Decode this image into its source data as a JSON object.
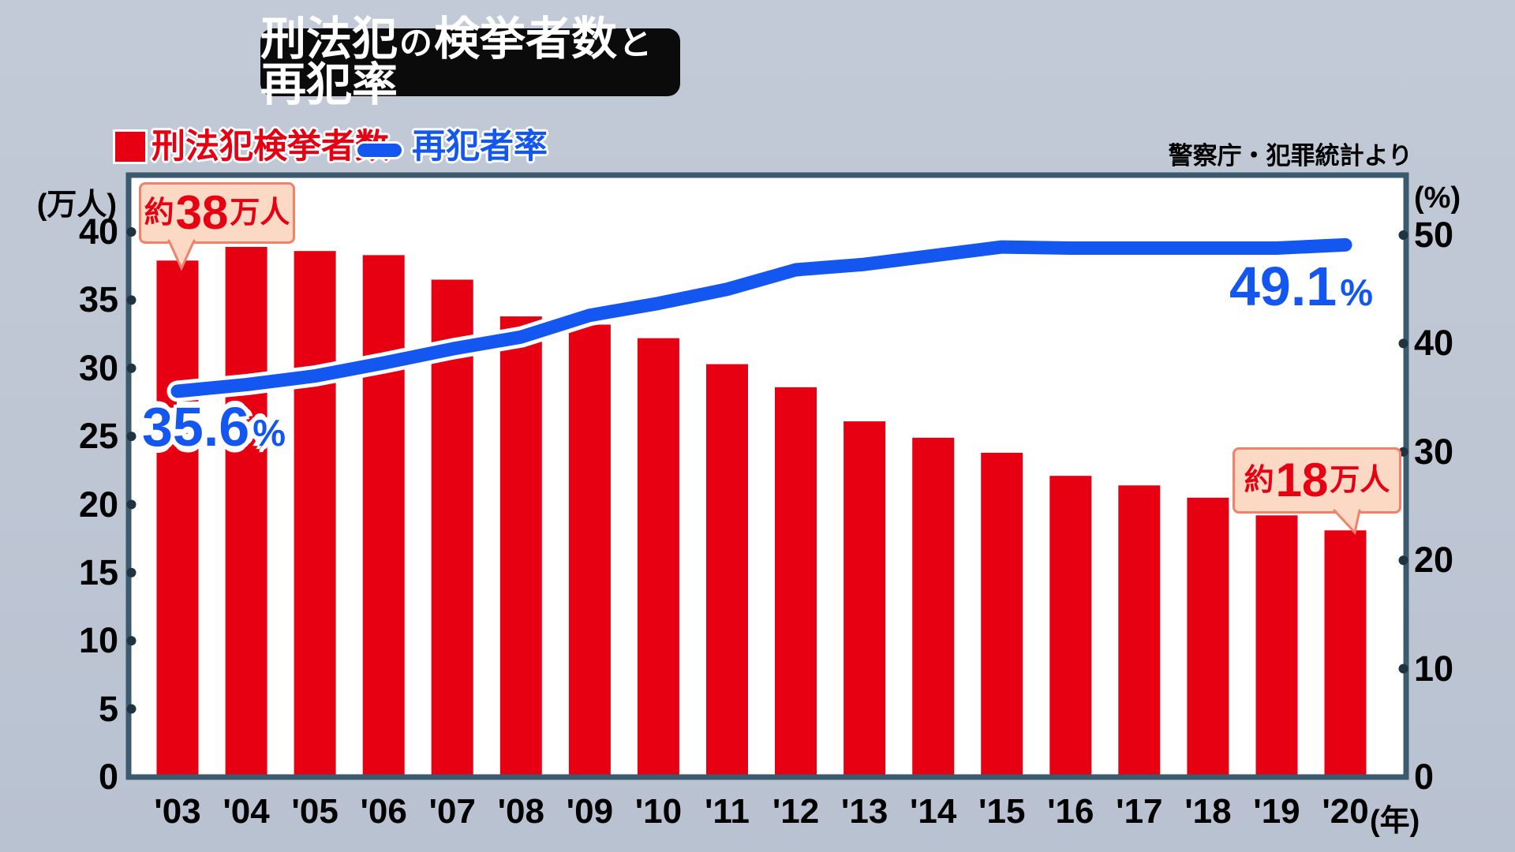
{
  "title": "刑法犯の検挙者数と再犯率",
  "title_parts": [
    {
      "text": "刑法犯",
      "size": "large"
    },
    {
      "text": "の",
      "size": "small"
    },
    {
      "text": "検挙者数",
      "size": "large"
    },
    {
      "text": "と",
      "size": "small"
    },
    {
      "text": "再犯率",
      "size": "large"
    }
  ],
  "legend": {
    "items": [
      {
        "label": "刑法犯検挙者数",
        "marker": "square",
        "color": "#e60012"
      },
      {
        "label": "再犯者率",
        "marker": "dash",
        "color": "#1456f0"
      }
    ]
  },
  "annotations": {
    "first_bar": {
      "text": "約38万人",
      "parts": [
        {
          "text": "約",
          "size": "small"
        },
        {
          "text": "38",
          "size": "large"
        },
        {
          "text": "万人",
          "size": "small"
        }
      ]
    },
    "last_bar": {
      "text": "約18万人",
      "parts": [
        {
          "text": "約",
          "size": "small"
        },
        {
          "text": "18",
          "size": "large"
        },
        {
          "text": "万人",
          "size": "small"
        }
      ]
    },
    "line_start": {
      "value": "35.6",
      "unit": "%"
    },
    "line_end": {
      "value": "49.1",
      "unit": "%"
    }
  },
  "colors": {
    "background": "#bec6d4",
    "plot_background": "#ffffff",
    "plot_border": "#3c5a6d",
    "bar": "#e60012",
    "line": "#1456f0",
    "line_outline": "#ffffff",
    "callout_background": "#fcd9c4",
    "callout_border": "#f0826a",
    "title_background": "#0b0b0b",
    "title_text": "#ffffff",
    "tick_dot": "#1f3440"
  },
  "chart_data": {
    "type": "bar+line combo",
    "title": "刑法犯の検挙者数と再犯率",
    "source": "警察庁・犯罪統計より",
    "categories": [
      "'03",
      "'04",
      "'05",
      "'06",
      "'07",
      "'08",
      "'09",
      "'10",
      "'11",
      "'12",
      "'13",
      "'14",
      "'15",
      "'16",
      "'17",
      "'18",
      "'19",
      "'20"
    ],
    "x_label": "(年)",
    "series": [
      {
        "name": "刑法犯検挙者数",
        "type": "bar",
        "axis": "left",
        "unit": "万人",
        "color": "#e60012",
        "values": [
          37.9,
          38.9,
          38.6,
          38.3,
          36.5,
          33.8,
          33.2,
          32.2,
          30.3,
          28.6,
          26.1,
          24.9,
          23.8,
          22.1,
          21.4,
          20.5,
          19.2,
          18.1
        ]
      },
      {
        "name": "再犯者率",
        "type": "line",
        "axis": "right",
        "unit": "%",
        "color": "#1456f0",
        "values": [
          35.6,
          36.2,
          37.0,
          38.2,
          39.5,
          40.6,
          42.6,
          43.7,
          45.0,
          46.8,
          47.3,
          48.1,
          48.9,
          48.8,
          48.8,
          48.8,
          48.8,
          49.1
        ]
      }
    ],
    "left_axis": {
      "label": "(万人)",
      "range": [
        0,
        40
      ],
      "tick_step": 5,
      "ticks": [
        0,
        5,
        10,
        15,
        20,
        25,
        30,
        35,
        40
      ]
    },
    "right_axis": {
      "label": "(%)",
      "range": [
        0,
        50
      ],
      "tick_step": 10,
      "ticks": [
        0,
        10,
        20,
        30,
        40,
        50
      ]
    },
    "grid": false,
    "legend_position": "top-left",
    "annotation_first_bar": "約38万人",
    "annotation_last_bar": "約18万人",
    "annotation_line_start": "35.6%",
    "annotation_line_end": "49.1%"
  }
}
